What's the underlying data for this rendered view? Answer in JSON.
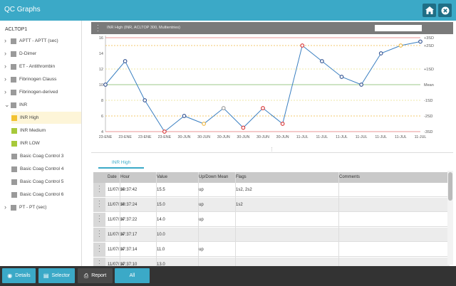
{
  "window": {
    "title": "QC Graphs"
  },
  "header_buttons": [
    {
      "name": "home-icon"
    },
    {
      "name": "close-icon"
    }
  ],
  "sidebar": {
    "root_label": "ACLTOP1",
    "items": [
      {
        "label": "APTT - APTT (sec)",
        "color": "#9a9a9a",
        "chevron": "›",
        "level": 0
      },
      {
        "label": "D-Dimer",
        "color": "#9a9a9a",
        "chevron": "›",
        "level": 0
      },
      {
        "label": "ET - Antithrombin",
        "color": "#9a9a9a",
        "chevron": "›",
        "level": 0
      },
      {
        "label": "Fibrinogen Clauss",
        "color": "#9a9a9a",
        "chevron": "›",
        "level": 0
      },
      {
        "label": "Fibrinogen-derived",
        "color": "#9a9a9a",
        "chevron": "›",
        "level": 0
      },
      {
        "label": "INR",
        "color": "#9a9a9a",
        "chevron": "⌄",
        "level": 0
      },
      {
        "label": "INR High",
        "color": "#f2c230",
        "chevron": "",
        "level": 1,
        "selected": true
      },
      {
        "label": "INR Medium",
        "color": "#a7c93a",
        "chevron": "",
        "level": 1
      },
      {
        "label": "INR LOW",
        "color": "#a7c93a",
        "chevron": "",
        "level": 1
      },
      {
        "label": "Basic Coag Control 3",
        "color": "#9a9a9a",
        "chevron": "",
        "level": 1
      },
      {
        "label": "Basic Coag Control 4",
        "color": "#9a9a9a",
        "chevron": "",
        "level": 1
      },
      {
        "label": "Basic Coag Control 5",
        "color": "#9a9a9a",
        "chevron": "",
        "level": 1
      },
      {
        "label": "Basic Coag Control 6",
        "color": "#9a9a9a",
        "chevron": "",
        "level": 1
      },
      {
        "label": "PT - PT (sec)",
        "color": "#9a9a9a",
        "chevron": "›",
        "level": 0
      }
    ]
  },
  "chart": {
    "header_title": "INR High (INR, ACLTOP 300, Multientries)",
    "search_value": ""
  },
  "chart_data": {
    "type": "line",
    "title": "",
    "x": [
      "23-ENE",
      "23-ENE",
      "23-ENE",
      "23-ENE",
      "30-JUN",
      "30-JUN",
      "30-JUN",
      "30-JUN",
      "30-JUN",
      "30-JUN",
      "11-JUL",
      "11-JUL",
      "11-JUL",
      "11-JUL",
      "11-JUL",
      "11-JUL",
      "11-JUL"
    ],
    "tick_labels": [
      "23-ENE",
      "23-ENE",
      "23-ENE",
      "23-ENE",
      "30-JUN",
      "30-JUN",
      "30-JUN",
      "30-JUN",
      "30-JUN",
      "30-JUN",
      "11-JUL",
      "11-JUL",
      "11-JUL",
      "11-JUL",
      "11-JUL",
      "11-JUL",
      "11-JUL"
    ],
    "values": [
      10,
      13,
      8,
      4,
      6,
      5,
      7,
      4.5,
      7,
      5,
      15,
      13,
      11,
      10,
      14,
      15,
      15.5
    ],
    "point_status": [
      "normal",
      "normal",
      "normal",
      "alarm",
      "normal",
      "warning",
      "highlight",
      "alarm",
      "alarm",
      "alarm",
      "alarm",
      "normal",
      "normal",
      "normal",
      "normal",
      "warning",
      "normal"
    ],
    "yticks": [
      4,
      6,
      8,
      10,
      12,
      14,
      16
    ],
    "ylim": [
      4,
      16
    ],
    "sd_lines": [
      {
        "label": "+3SD",
        "value": 16,
        "color": "#e57373"
      },
      {
        "label": "+2SD",
        "value": 15,
        "color": "#f0b840"
      },
      {
        "label": "+1SD",
        "value": 12,
        "color": "#e6e08a"
      },
      {
        "label": "Mean",
        "value": 10,
        "color": "#7bb661"
      },
      {
        "label": "-1SD",
        "value": 8,
        "color": "#e6e08a"
      },
      {
        "label": "-2SD",
        "value": 6,
        "color": "#f0b840"
      },
      {
        "label": "-3SD",
        "value": 4,
        "color": "#e57373"
      }
    ],
    "status_colors": {
      "normal": "#2f4f8f",
      "warning": "#f0b840",
      "alarm": "#d93030",
      "highlight": "#999999"
    },
    "line_color": "#3a7fc1",
    "grid": false,
    "legend": "none"
  },
  "table": {
    "tab_label": "INR High",
    "columns": [
      "Date",
      "Hour",
      "Value",
      "Up/Down Mean",
      "Flags",
      "Comments"
    ],
    "rows": [
      {
        "date": "11/07/14",
        "hour": "19:37:42",
        "value": "15.5",
        "updown": "up",
        "flags": "1s2, 2s2",
        "comments": ""
      },
      {
        "date": "11/07/14",
        "hour": "18:37:24",
        "value": "15.0",
        "updown": "up",
        "flags": "1s2",
        "comments": ""
      },
      {
        "date": "11/07/14",
        "hour": "17:37:22",
        "value": "14.0",
        "updown": "up",
        "flags": "",
        "comments": ""
      },
      {
        "date": "11/07/14",
        "hour": "17:37:17",
        "value": "10.0",
        "updown": "",
        "flags": "",
        "comments": ""
      },
      {
        "date": "11/07/14",
        "hour": "17:37:14",
        "value": "11.0",
        "updown": "up",
        "flags": "",
        "comments": ""
      },
      {
        "date": "11/07/14",
        "hour": "17:37:10",
        "value": "13.0",
        "updown": "",
        "flags": "",
        "comments": ""
      }
    ]
  },
  "bottombar": {
    "details_label": "Details",
    "selector_label": "Selector",
    "report_label": "Report",
    "all_label": "All"
  }
}
